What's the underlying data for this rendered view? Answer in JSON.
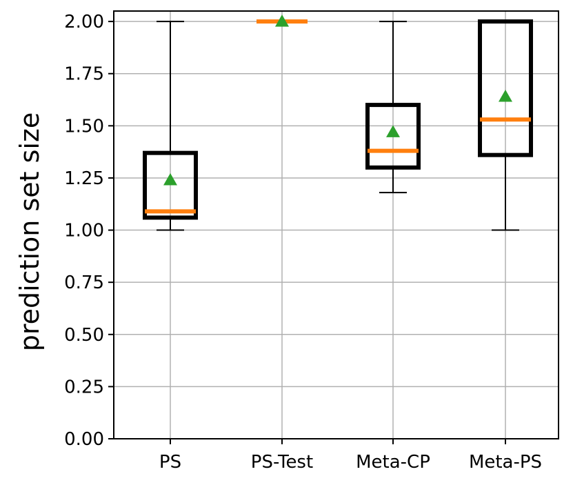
{
  "chart_data": {
    "type": "boxplot",
    "title": "",
    "xlabel": "",
    "ylabel": "prediction set size",
    "ylim": [
      0,
      2.0
    ],
    "yticks": [
      "0.00",
      "0.25",
      "0.50",
      "0.75",
      "1.00",
      "1.25",
      "1.50",
      "1.75",
      "2.00"
    ],
    "grid": true,
    "categories": [
      "PS",
      "PS-Test",
      "Meta-CP",
      "Meta-PS"
    ],
    "boxes": [
      {
        "label": "PS",
        "whisker_low": 1.0,
        "q1": 1.06,
        "median": 1.09,
        "q3": 1.37,
        "whisker_high": 2.0,
        "mean": 1.24
      },
      {
        "label": "PS-Test",
        "whisker_low": 2.0,
        "q1": 2.0,
        "median": 2.0,
        "q3": 2.0,
        "whisker_high": 2.0,
        "mean": 2.0
      },
      {
        "label": "Meta-CP",
        "whisker_low": 1.18,
        "q1": 1.3,
        "median": 1.38,
        "q3": 1.6,
        "whisker_high": 2.0,
        "mean": 1.47
      },
      {
        "label": "Meta-PS",
        "whisker_low": 1.0,
        "q1": 1.36,
        "median": 1.53,
        "q3": 2.0,
        "whisker_high": 2.0,
        "mean": 1.64
      }
    ],
    "colors": {
      "box": "#000000",
      "median": "#ff7f0e",
      "mean": "#2ca02c",
      "grid": "#b0b0b0"
    }
  }
}
